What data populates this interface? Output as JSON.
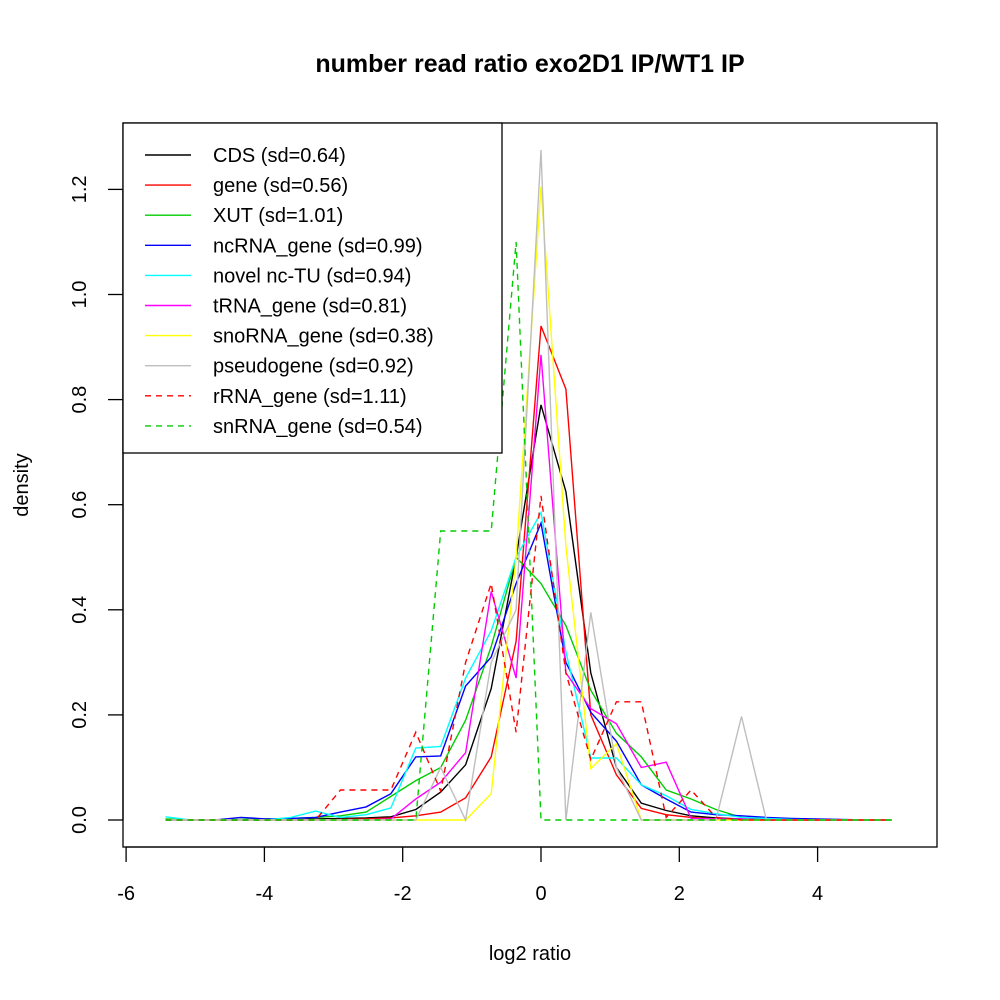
{
  "chart_data": {
    "type": "line",
    "title": "number read ratio exo2D1 IP/WT1 IP",
    "xlabel": "log2 ratio",
    "ylabel": "density",
    "xlim": [
      -6,
      5.3
    ],
    "ylim": [
      -0.05,
      1.33
    ],
    "x_ticks": [
      -6,
      -4,
      -2,
      0,
      2,
      4
    ],
    "x_tick_labels": [
      "-6",
      "-4",
      "-2",
      "0",
      "2",
      "4"
    ],
    "y_ticks": [
      0.0,
      0.2,
      0.4,
      0.6,
      0.8,
      1.0,
      1.2
    ],
    "y_tick_labels": [
      "0.0",
      "0.2",
      "0.4",
      "0.6",
      "0.8",
      "1.0",
      "1.2"
    ],
    "grid": false,
    "legend_position": "top-left",
    "x": [
      -5.43,
      -5.07,
      -4.71,
      -4.34,
      -3.98,
      -3.62,
      -3.26,
      -2.9,
      -2.53,
      -2.17,
      -1.81,
      -1.45,
      -1.09,
      -0.72,
      -0.36,
      0.0,
      0.36,
      0.72,
      1.09,
      1.45,
      1.81,
      2.17,
      2.53,
      2.9,
      3.26,
      3.62,
      3.98,
      4.34,
      4.71,
      5.07
    ],
    "series": [
      {
        "name": "CDS (sd=0.64)",
        "color": "#000000",
        "dash": false,
        "values": [
          0,
          0,
          0,
          0,
          0,
          0,
          0.002,
          0.003,
          0.004,
          0.006,
          0.02,
          0.053,
          0.105,
          0.25,
          0.5,
          0.79,
          0.625,
          0.28,
          0.1,
          0.032,
          0.018,
          0.008,
          0.004,
          0.002,
          0.001,
          0,
          0,
          0,
          0,
          0
        ]
      },
      {
        "name": "gene (sd=0.56)",
        "color": "#ff0000",
        "dash": false,
        "values": [
          0,
          0,
          0,
          0,
          0,
          0,
          0,
          0.001,
          0.002,
          0.004,
          0.008,
          0.015,
          0.042,
          0.12,
          0.34,
          0.94,
          0.82,
          0.2,
          0.086,
          0.022,
          0.01,
          0.005,
          0.002,
          0.001,
          0,
          0,
          0,
          0,
          0,
          0
        ]
      },
      {
        "name": "XUT (sd=1.01)",
        "color": "#00cd00",
        "dash": false,
        "values": [
          0.002,
          0,
          0,
          0.001,
          0.002,
          0.003,
          0.005,
          0.008,
          0.015,
          0.045,
          0.075,
          0.1,
          0.19,
          0.33,
          0.5,
          0.45,
          0.37,
          0.247,
          0.165,
          0.12,
          0.057,
          0.04,
          0.02,
          0.005,
          0.003,
          0.002,
          0.001,
          0,
          0,
          0
        ]
      },
      {
        "name": "ncRNA_gene (sd=0.99)",
        "color": "#0000ff",
        "dash": false,
        "values": [
          0,
          0,
          0,
          0.005,
          0.002,
          0.003,
          0.005,
          0.015,
          0.025,
          0.05,
          0.12,
          0.122,
          0.255,
          0.31,
          0.45,
          0.565,
          0.3,
          0.205,
          0.15,
          0.067,
          0.04,
          0.015,
          0.01,
          0.008,
          0.005,
          0.003,
          0.002,
          0.001,
          0,
          0
        ]
      },
      {
        "name": "novel nc-TU (sd=0.94)",
        "color": "#00ffff",
        "dash": false,
        "values": [
          0.006,
          0,
          0,
          0,
          0,
          0.005,
          0.017,
          0.005,
          0.01,
          0.023,
          0.137,
          0.14,
          0.27,
          0.36,
          0.5,
          0.585,
          0.32,
          0.118,
          0.118,
          0.067,
          0.046,
          0.02,
          0.012,
          0.005,
          0.003,
          0.001,
          0,
          0,
          0,
          0
        ]
      },
      {
        "name": "tRNA_gene (sd=0.81)",
        "color": "#ff00ff",
        "dash": false,
        "values": [
          0,
          0,
          0,
          0,
          0,
          0,
          0,
          0,
          0,
          0.002,
          0.04,
          0.072,
          0.128,
          0.435,
          0.27,
          0.885,
          0.28,
          0.212,
          0.183,
          0.1,
          0.11,
          0.003,
          0.002,
          0.002,
          0,
          0,
          0,
          0,
          0,
          0
        ]
      },
      {
        "name": "snoRNA_gene (sd=0.38)",
        "color": "#ffff00",
        "dash": false,
        "values": [
          0,
          0,
          0,
          0,
          0,
          0,
          0,
          0,
          0,
          0,
          0,
          0,
          0,
          0.05,
          0.5,
          1.205,
          0.52,
          0.098,
          0.145,
          0,
          0,
          0,
          0,
          0,
          0,
          0,
          0,
          0,
          0,
          0
        ]
      },
      {
        "name": "pseudogene (sd=0.92)",
        "color": "#bebebe",
        "dash": false,
        "values": [
          0,
          0,
          0,
          0,
          0,
          0,
          0,
          0,
          0,
          0,
          0,
          0.1,
          0,
          0.3,
          0.4,
          1.275,
          0,
          0.395,
          0.1,
          0,
          0,
          0,
          0,
          0.197,
          0,
          0,
          0,
          0,
          0,
          0
        ]
      },
      {
        "name": "rRNA_gene (sd=1.11)",
        "color": "#ff0000",
        "dash": true,
        "values": [
          0,
          0,
          0,
          0,
          0,
          0,
          0,
          0.057,
          0.057,
          0.057,
          0.167,
          0.055,
          0.3,
          0.45,
          0.167,
          0.617,
          0.28,
          0.115,
          0.225,
          0.225,
          0.005,
          0.057,
          0.005,
          0,
          0,
          0,
          0,
          0,
          0,
          0
        ]
      },
      {
        "name": "snRNA_gene (sd=0.54)",
        "color": "#00cd00",
        "dash": true,
        "values": [
          0,
          0,
          0,
          0,
          0,
          0,
          0,
          0,
          0,
          0,
          0,
          0.55,
          0.55,
          0.55,
          1.1,
          0,
          0,
          0,
          0,
          0,
          0,
          0,
          0,
          0,
          0,
          0,
          0,
          0,
          0,
          0
        ]
      }
    ]
  }
}
